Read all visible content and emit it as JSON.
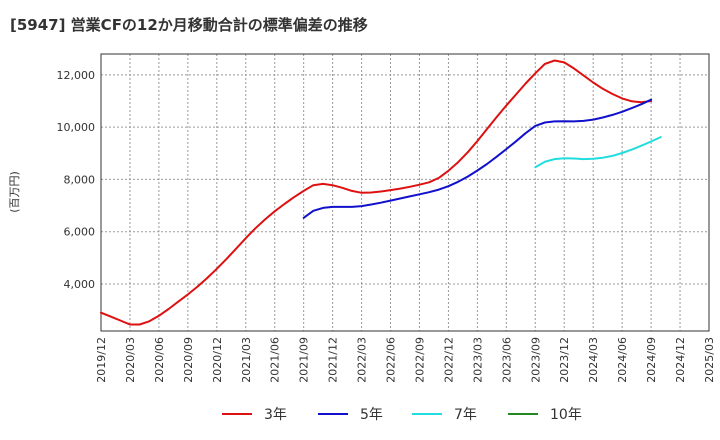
{
  "chart_data": {
    "type": "line",
    "title": "[5947]  営業CFの12か月移動合計の標準偏差の推移",
    "ylabel": "(百万円)",
    "xlabel": "",
    "ylim": [
      2200,
      12800
    ],
    "yticks": [
      4000,
      6000,
      8000,
      10000,
      12000
    ],
    "ytick_labels": [
      "4,000",
      "6,000",
      "8,000",
      "10,000",
      "12,000"
    ],
    "xlim": [
      "2019-12",
      "2025-03"
    ],
    "xtick_labels": [
      "2019/12",
      "2020/03",
      "2020/06",
      "2020/09",
      "2020/12",
      "2021/03",
      "2021/06",
      "2021/09",
      "2021/12",
      "2022/03",
      "2022/06",
      "2022/09",
      "2022/12",
      "2023/03",
      "2023/06",
      "2023/09",
      "2023/12",
      "2024/03",
      "2024/06",
      "2024/09",
      "2024/12",
      "2025/03"
    ],
    "grid": true,
    "legend_position": "bottom",
    "series": [
      {
        "name": "3年",
        "color": "#dd1111",
        "points": [
          [
            "2019-12",
            2900
          ],
          [
            "2020-01",
            2750
          ],
          [
            "2020-02",
            2600
          ],
          [
            "2020-03",
            2450
          ],
          [
            "2020-04",
            2450
          ],
          [
            "2020-05",
            2570
          ],
          [
            "2020-06",
            2780
          ],
          [
            "2020-07",
            3040
          ],
          [
            "2020-08",
            3320
          ],
          [
            "2020-09",
            3600
          ],
          [
            "2020-10",
            3900
          ],
          [
            "2020-11",
            4230
          ],
          [
            "2020-12",
            4580
          ],
          [
            "2021-01",
            4960
          ],
          [
            "2021-02",
            5350
          ],
          [
            "2021-03",
            5750
          ],
          [
            "2021-04",
            6130
          ],
          [
            "2021-05",
            6470
          ],
          [
            "2021-06",
            6780
          ],
          [
            "2021-07",
            7060
          ],
          [
            "2021-08",
            7320
          ],
          [
            "2021-09",
            7560
          ],
          [
            "2021-10",
            7780
          ],
          [
            "2021-11",
            7830
          ],
          [
            "2021-12",
            7780
          ],
          [
            "2022-01",
            7680
          ],
          [
            "2022-02",
            7560
          ],
          [
            "2022-03",
            7490
          ],
          [
            "2022-04",
            7500
          ],
          [
            "2022-05",
            7540
          ],
          [
            "2022-06",
            7590
          ],
          [
            "2022-07",
            7650
          ],
          [
            "2022-08",
            7720
          ],
          [
            "2022-09",
            7800
          ],
          [
            "2022-10",
            7890
          ],
          [
            "2022-11",
            8060
          ],
          [
            "2022-12",
            8330
          ],
          [
            "2023-01",
            8660
          ],
          [
            "2023-02",
            9040
          ],
          [
            "2023-03",
            9470
          ],
          [
            "2023-04",
            9930
          ],
          [
            "2023-05",
            10390
          ],
          [
            "2023-06",
            10830
          ],
          [
            "2023-07",
            11250
          ],
          [
            "2023-08",
            11670
          ],
          [
            "2023-09",
            12060
          ],
          [
            "2023-10",
            12420
          ],
          [
            "2023-11",
            12550
          ],
          [
            "2023-12",
            12480
          ],
          [
            "2024-01",
            12250
          ],
          [
            "2024-02",
            11980
          ],
          [
            "2024-03",
            11710
          ],
          [
            "2024-04",
            11470
          ],
          [
            "2024-05",
            11270
          ],
          [
            "2024-06",
            11100
          ],
          [
            "2024-07",
            10990
          ],
          [
            "2024-08",
            10950
          ],
          [
            "2024-09",
            11000
          ]
        ]
      },
      {
        "name": "5年",
        "color": "#1111cc",
        "points": [
          [
            "2021-09",
            6530
          ],
          [
            "2021-10",
            6800
          ],
          [
            "2021-11",
            6910
          ],
          [
            "2021-12",
            6950
          ],
          [
            "2022-01",
            6950
          ],
          [
            "2022-02",
            6950
          ],
          [
            "2022-03",
            6980
          ],
          [
            "2022-04",
            7040
          ],
          [
            "2022-05",
            7110
          ],
          [
            "2022-06",
            7190
          ],
          [
            "2022-07",
            7270
          ],
          [
            "2022-08",
            7350
          ],
          [
            "2022-09",
            7430
          ],
          [
            "2022-10",
            7510
          ],
          [
            "2022-11",
            7610
          ],
          [
            "2022-12",
            7740
          ],
          [
            "2023-01",
            7910
          ],
          [
            "2023-02",
            8110
          ],
          [
            "2023-03",
            8340
          ],
          [
            "2023-04",
            8590
          ],
          [
            "2023-05",
            8870
          ],
          [
            "2023-06",
            9160
          ],
          [
            "2023-07",
            9460
          ],
          [
            "2023-08",
            9770
          ],
          [
            "2023-09",
            10050
          ],
          [
            "2023-10",
            10180
          ],
          [
            "2023-11",
            10220
          ],
          [
            "2023-12",
            10230
          ],
          [
            "2024-01",
            10220
          ],
          [
            "2024-02",
            10240
          ],
          [
            "2024-03",
            10290
          ],
          [
            "2024-04",
            10370
          ],
          [
            "2024-05",
            10470
          ],
          [
            "2024-06",
            10590
          ],
          [
            "2024-07",
            10730
          ],
          [
            "2024-08",
            10880
          ],
          [
            "2024-09",
            11050
          ]
        ]
      },
      {
        "name": "7年",
        "color": "#22dddd",
        "points": [
          [
            "2023-09",
            8470
          ],
          [
            "2023-10",
            8680
          ],
          [
            "2023-11",
            8780
          ],
          [
            "2023-12",
            8810
          ],
          [
            "2024-01",
            8800
          ],
          [
            "2024-02",
            8780
          ],
          [
            "2024-03",
            8790
          ],
          [
            "2024-04",
            8830
          ],
          [
            "2024-05",
            8900
          ],
          [
            "2024-06",
            9010
          ],
          [
            "2024-07",
            9140
          ],
          [
            "2024-08",
            9290
          ],
          [
            "2024-09",
            9450
          ],
          [
            "2024-10",
            9620
          ]
        ]
      },
      {
        "name": "10年",
        "color": "#228822",
        "points": []
      }
    ]
  }
}
